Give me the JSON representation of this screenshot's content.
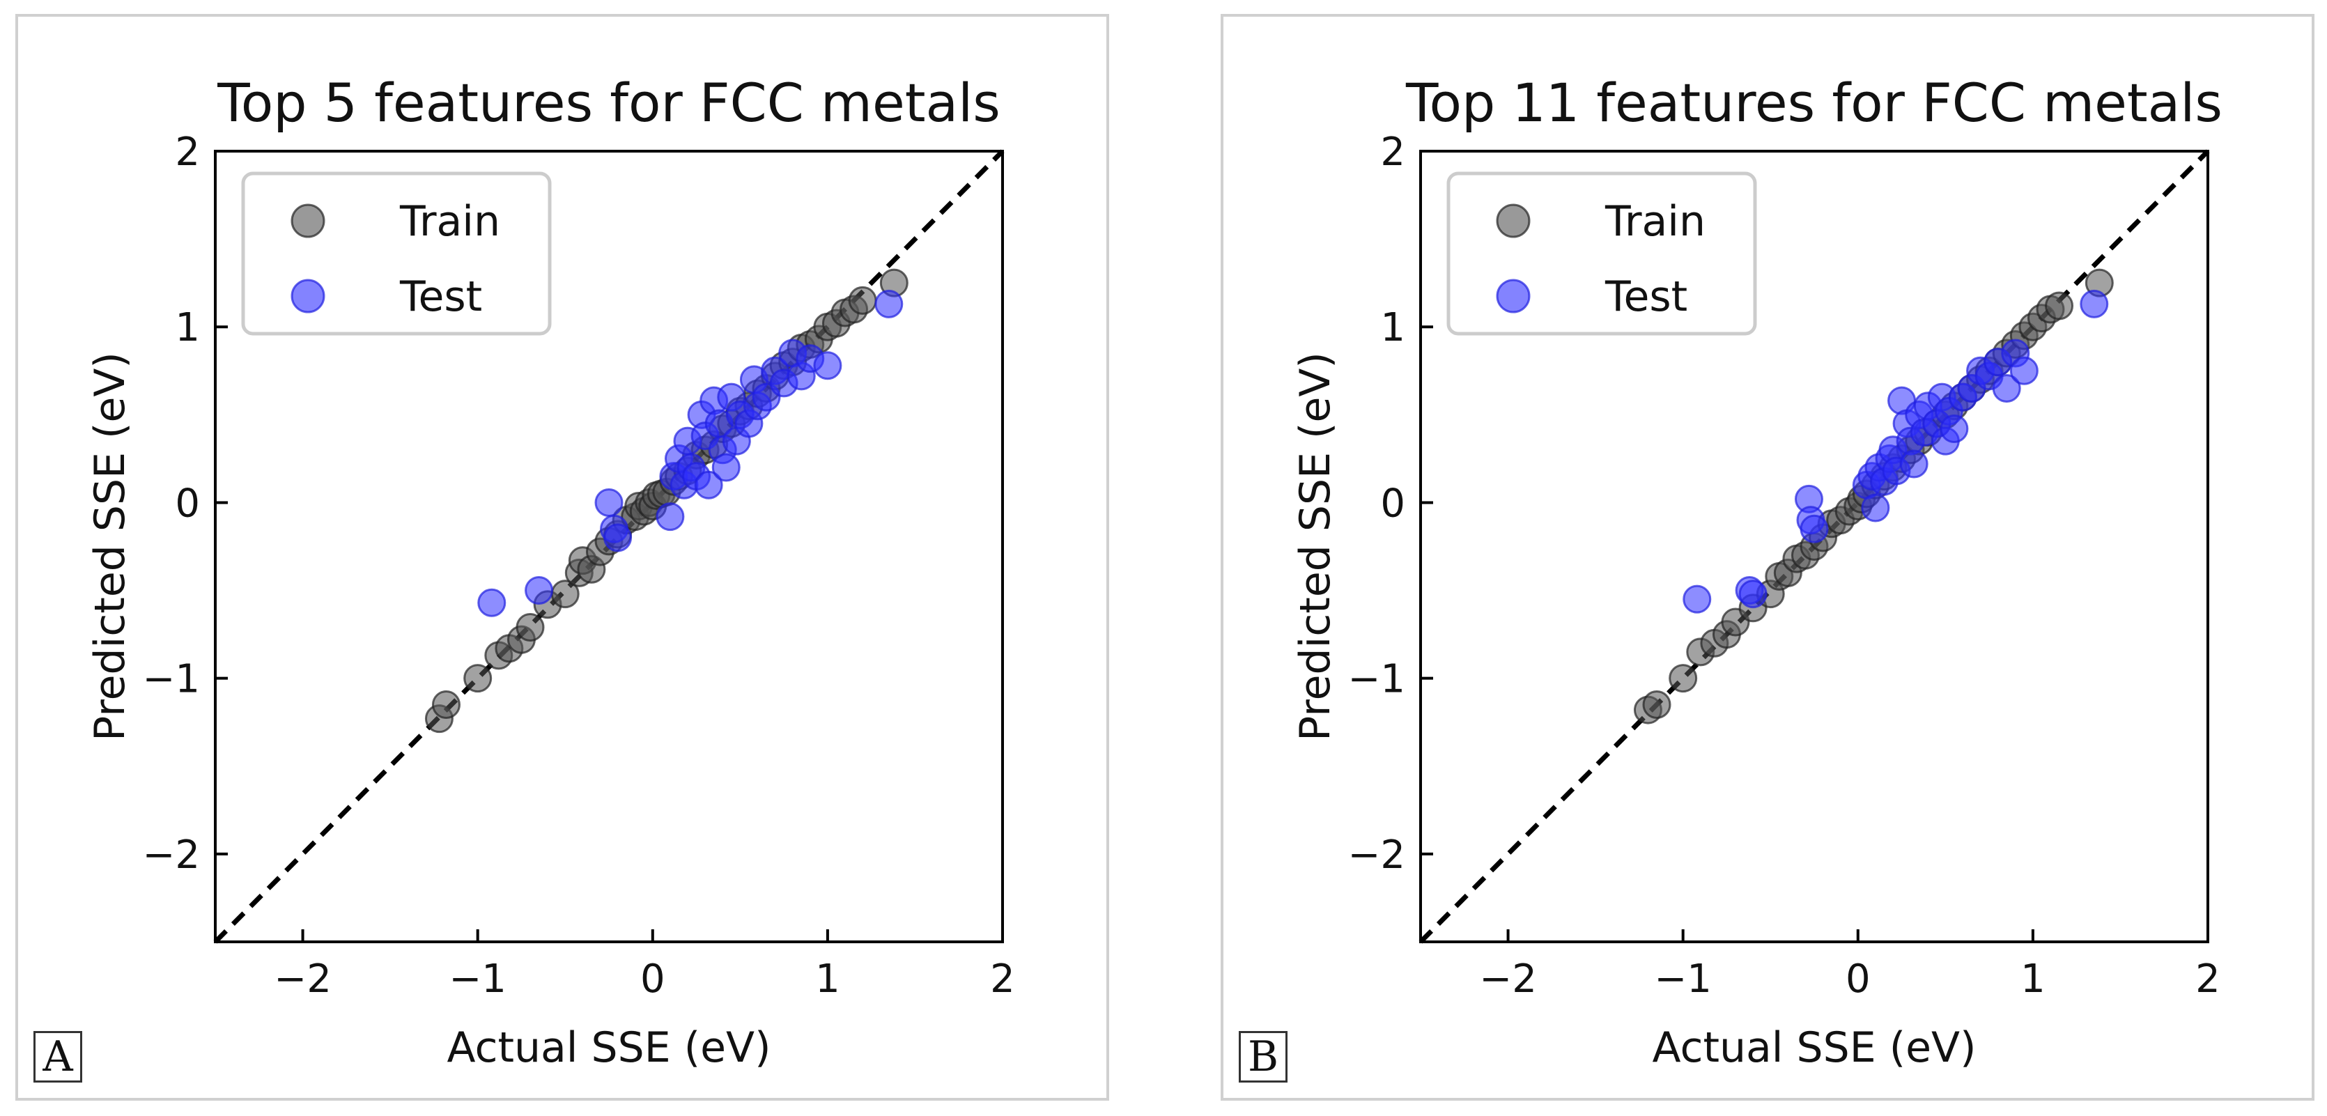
{
  "chart_data": [
    {
      "panel_label": "A",
      "type": "scatter",
      "title": "Top 5 features for FCC metals",
      "xlabel": "Actual SSE (eV)",
      "ylabel": "Predicted SSE (eV)",
      "xlim": [
        -2.5,
        2
      ],
      "ylim": [
        -2.5,
        2
      ],
      "xticks": [
        -2,
        -1,
        0,
        1,
        2
      ],
      "yticks": [
        -2,
        -1,
        0,
        1,
        2
      ],
      "xtick_labels": [
        "−2",
        "−1",
        "0",
        "1",
        "2"
      ],
      "ytick_labels": [
        "−2",
        "−1",
        "0",
        "1",
        "2"
      ],
      "legend_position": "top-left",
      "reference_line": {
        "style": "dashed",
        "color": "#000000",
        "slope": 1,
        "intercept": 0
      },
      "series": [
        {
          "name": "Train",
          "color": "#555555",
          "points": [
            [
              -1.22,
              -1.23
            ],
            [
              -1.18,
              -1.15
            ],
            [
              -1.0,
              -1.0
            ],
            [
              -0.88,
              -0.87
            ],
            [
              -0.82,
              -0.83
            ],
            [
              -0.75,
              -0.78
            ],
            [
              -0.7,
              -0.71
            ],
            [
              -0.6,
              -0.58
            ],
            [
              -0.5,
              -0.52
            ],
            [
              -0.42,
              -0.4
            ],
            [
              -0.4,
              -0.33
            ],
            [
              -0.35,
              -0.38
            ],
            [
              -0.3,
              -0.28
            ],
            [
              -0.25,
              -0.22
            ],
            [
              -0.2,
              -0.18
            ],
            [
              -0.15,
              -0.1
            ],
            [
              -0.1,
              -0.08
            ],
            [
              -0.08,
              -0.02
            ],
            [
              -0.05,
              -0.05
            ],
            [
              -0.02,
              0.0
            ],
            [
              0.0,
              -0.02
            ],
            [
              0.02,
              0.04
            ],
            [
              0.05,
              0.05
            ],
            [
              0.08,
              0.06
            ],
            [
              0.12,
              0.12
            ],
            [
              0.15,
              0.15
            ],
            [
              0.2,
              0.18
            ],
            [
              0.25,
              0.27
            ],
            [
              0.3,
              0.3
            ],
            [
              0.35,
              0.33
            ],
            [
              0.4,
              0.42
            ],
            [
              0.45,
              0.45
            ],
            [
              0.5,
              0.52
            ],
            [
              0.55,
              0.55
            ],
            [
              0.6,
              0.62
            ],
            [
              0.65,
              0.65
            ],
            [
              0.7,
              0.72
            ],
            [
              0.75,
              0.78
            ],
            [
              0.8,
              0.8
            ],
            [
              0.85,
              0.88
            ],
            [
              0.9,
              0.9
            ],
            [
              0.95,
              0.93
            ],
            [
              1.0,
              1.0
            ],
            [
              1.05,
              1.02
            ],
            [
              1.1,
              1.08
            ],
            [
              1.15,
              1.1
            ],
            [
              1.2,
              1.15
            ],
            [
              1.38,
              1.25
            ]
          ]
        },
        {
          "name": "Test",
          "color": "#3030ff",
          "points": [
            [
              -0.92,
              -0.57
            ],
            [
              -0.65,
              -0.5
            ],
            [
              -0.25,
              0.0
            ],
            [
              -0.22,
              -0.15
            ],
            [
              -0.2,
              -0.2
            ],
            [
              0.1,
              -0.08
            ],
            [
              0.12,
              0.15
            ],
            [
              0.15,
              0.25
            ],
            [
              0.18,
              0.1
            ],
            [
              0.2,
              0.35
            ],
            [
              0.22,
              0.2
            ],
            [
              0.25,
              0.15
            ],
            [
              0.28,
              0.5
            ],
            [
              0.3,
              0.38
            ],
            [
              0.32,
              0.1
            ],
            [
              0.35,
              0.58
            ],
            [
              0.38,
              0.45
            ],
            [
              0.4,
              0.3
            ],
            [
              0.42,
              0.2
            ],
            [
              0.45,
              0.6
            ],
            [
              0.48,
              0.35
            ],
            [
              0.5,
              0.5
            ],
            [
              0.55,
              0.45
            ],
            [
              0.58,
              0.7
            ],
            [
              0.6,
              0.55
            ],
            [
              0.65,
              0.6
            ],
            [
              0.7,
              0.75
            ],
            [
              0.75,
              0.68
            ],
            [
              0.8,
              0.85
            ],
            [
              0.85,
              0.72
            ],
            [
              0.9,
              0.82
            ],
            [
              1.0,
              0.78
            ],
            [
              1.35,
              1.13
            ]
          ]
        }
      ]
    },
    {
      "panel_label": "B",
      "type": "scatter",
      "title": "Top 11 features for FCC metals",
      "xlabel": "Actual SSE (eV)",
      "ylabel": "Predicted SSE (eV)",
      "xlim": [
        -2.5,
        2
      ],
      "ylim": [
        -2.5,
        2
      ],
      "xticks": [
        -2,
        -1,
        0,
        1,
        2
      ],
      "yticks": [
        -2,
        -1,
        0,
        1,
        2
      ],
      "xtick_labels": [
        "−2",
        "−1",
        "0",
        "1",
        "2"
      ],
      "ytick_labels": [
        "−2",
        "−1",
        "0",
        "1",
        "2"
      ],
      "legend_position": "top-left",
      "reference_line": {
        "style": "dashed",
        "color": "#000000",
        "slope": 1,
        "intercept": 0
      },
      "series": [
        {
          "name": "Train",
          "color": "#555555",
          "points": [
            [
              -1.2,
              -1.18
            ],
            [
              -1.15,
              -1.15
            ],
            [
              -1.0,
              -1.0
            ],
            [
              -0.9,
              -0.85
            ],
            [
              -0.82,
              -0.8
            ],
            [
              -0.75,
              -0.75
            ],
            [
              -0.7,
              -0.68
            ],
            [
              -0.6,
              -0.6
            ],
            [
              -0.5,
              -0.52
            ],
            [
              -0.45,
              -0.42
            ],
            [
              -0.4,
              -0.4
            ],
            [
              -0.35,
              -0.32
            ],
            [
              -0.3,
              -0.3
            ],
            [
              -0.25,
              -0.25
            ],
            [
              -0.2,
              -0.2
            ],
            [
              -0.15,
              -0.12
            ],
            [
              -0.1,
              -0.1
            ],
            [
              -0.05,
              -0.05
            ],
            [
              0.0,
              -0.02
            ],
            [
              0.02,
              0.02
            ],
            [
              0.05,
              0.05
            ],
            [
              0.1,
              0.1
            ],
            [
              0.15,
              0.15
            ],
            [
              0.2,
              0.2
            ],
            [
              0.25,
              0.25
            ],
            [
              0.3,
              0.3
            ],
            [
              0.35,
              0.35
            ],
            [
              0.4,
              0.4
            ],
            [
              0.45,
              0.45
            ],
            [
              0.5,
              0.5
            ],
            [
              0.55,
              0.55
            ],
            [
              0.6,
              0.6
            ],
            [
              0.65,
              0.65
            ],
            [
              0.7,
              0.7
            ],
            [
              0.75,
              0.75
            ],
            [
              0.8,
              0.8
            ],
            [
              0.85,
              0.85
            ],
            [
              0.9,
              0.9
            ],
            [
              0.95,
              0.95
            ],
            [
              1.0,
              1.0
            ],
            [
              1.05,
              1.05
            ],
            [
              1.1,
              1.1
            ],
            [
              1.15,
              1.12
            ],
            [
              1.38,
              1.25
            ]
          ]
        },
        {
          "name": "Test",
          "color": "#3030ff",
          "points": [
            [
              -0.92,
              -0.55
            ],
            [
              -0.62,
              -0.5
            ],
            [
              -0.6,
              -0.52
            ],
            [
              -0.28,
              0.02
            ],
            [
              -0.27,
              -0.1
            ],
            [
              -0.25,
              -0.15
            ],
            [
              0.05,
              0.1
            ],
            [
              0.08,
              0.15
            ],
            [
              0.1,
              -0.03
            ],
            [
              0.12,
              0.2
            ],
            [
              0.15,
              0.12
            ],
            [
              0.18,
              0.25
            ],
            [
              0.2,
              0.3
            ],
            [
              0.22,
              0.18
            ],
            [
              0.25,
              0.58
            ],
            [
              0.28,
              0.45
            ],
            [
              0.3,
              0.35
            ],
            [
              0.32,
              0.22
            ],
            [
              0.35,
              0.5
            ],
            [
              0.38,
              0.4
            ],
            [
              0.4,
              0.55
            ],
            [
              0.45,
              0.45
            ],
            [
              0.48,
              0.6
            ],
            [
              0.5,
              0.35
            ],
            [
              0.52,
              0.52
            ],
            [
              0.55,
              0.42
            ],
            [
              0.6,
              0.6
            ],
            [
              0.65,
              0.65
            ],
            [
              0.7,
              0.75
            ],
            [
              0.75,
              0.72
            ],
            [
              0.8,
              0.8
            ],
            [
              0.85,
              0.65
            ],
            [
              0.9,
              0.85
            ],
            [
              0.95,
              0.75
            ],
            [
              1.35,
              1.13
            ]
          ]
        }
      ]
    }
  ]
}
